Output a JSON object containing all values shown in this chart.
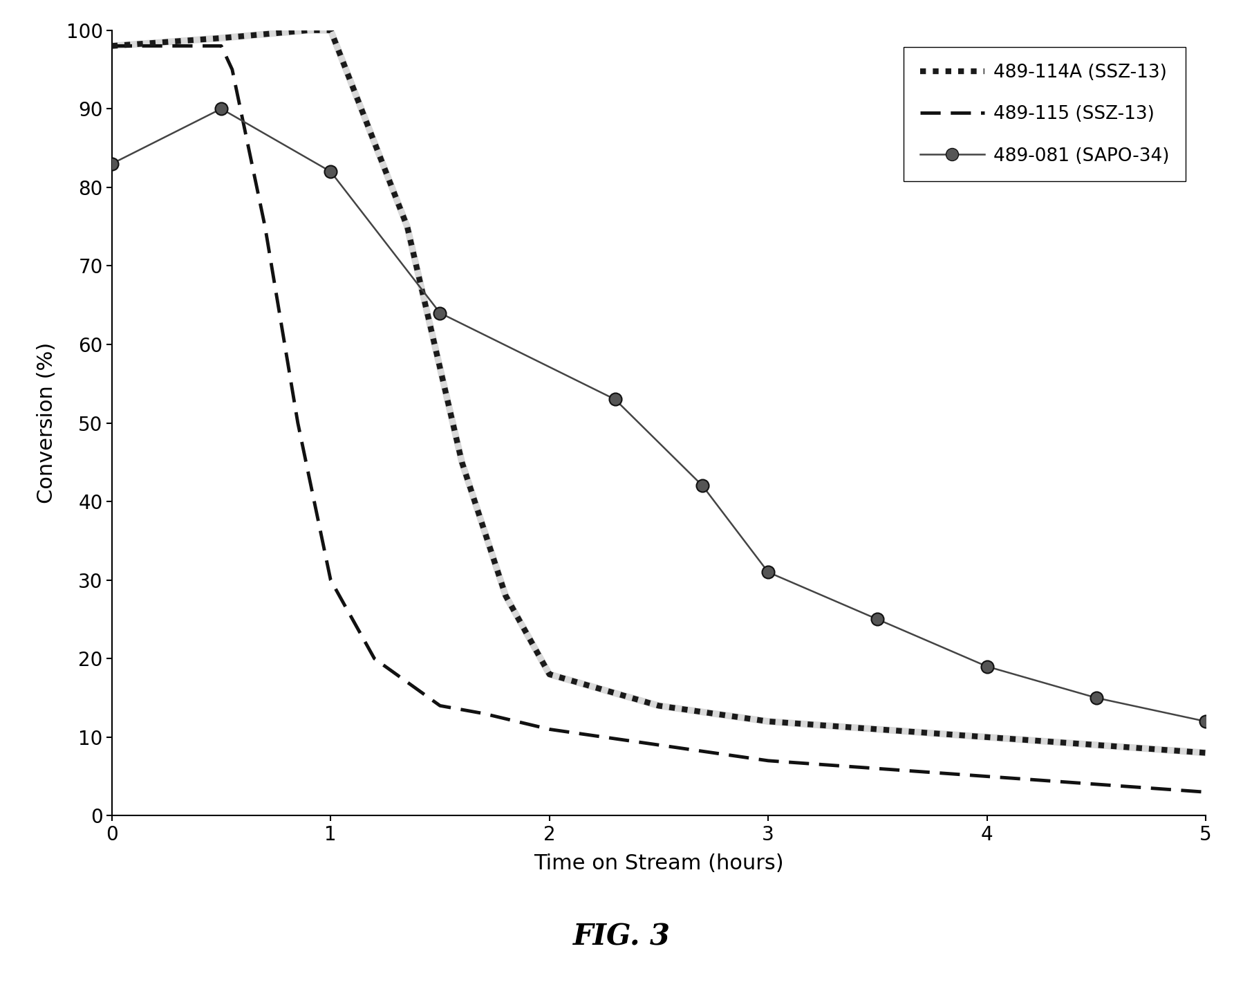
{
  "series": [
    {
      "label": "489-114A (SSZ-13)",
      "x": [
        0,
        0.5,
        0.9,
        1.0,
        1.35,
        1.6,
        1.8,
        2.0,
        2.5,
        3.0,
        3.5,
        4.0,
        4.5,
        5.0
      ],
      "y": [
        98,
        99,
        100,
        100,
        75,
        45,
        28,
        18,
        14,
        12,
        11,
        10,
        9,
        8
      ],
      "style": "dotted_thick",
      "color": "#1a1a1a",
      "linewidth": 6,
      "marker": null,
      "zorder": 3
    },
    {
      "label": "489-115 (SSZ-13)",
      "x": [
        0,
        0.5,
        0.55,
        0.7,
        0.85,
        1.0,
        1.2,
        1.5,
        1.7,
        2.0,
        2.5,
        3.0,
        3.5,
        4.0,
        4.5,
        5.0
      ],
      "y": [
        98,
        98,
        95,
        75,
        50,
        30,
        20,
        14,
        13,
        11,
        9,
        7,
        6,
        5,
        4,
        3
      ],
      "style": "dashed",
      "color": "#111111",
      "linewidth": 3.5,
      "marker": null,
      "zorder": 2
    },
    {
      "label": "489-081 (SAPO-34)",
      "x": [
        0,
        0.5,
        1.0,
        1.5,
        2.3,
        2.7,
        3.0,
        3.5,
        4.0,
        4.5,
        5.0
      ],
      "y": [
        83,
        90,
        82,
        64,
        53,
        42,
        31,
        25,
        19,
        15,
        12
      ],
      "style": "solid",
      "color": "#444444",
      "linewidth": 1.8,
      "marker": "o",
      "markersize": 13,
      "zorder": 4
    }
  ],
  "xlabel": "Time on Stream (hours)",
  "ylabel": "Conversion (%)",
  "xlim": [
    0,
    5
  ],
  "ylim": [
    0,
    100
  ],
  "xticks": [
    0,
    1,
    2,
    3,
    4,
    5
  ],
  "yticks": [
    0,
    10,
    20,
    30,
    40,
    50,
    60,
    70,
    80,
    90,
    100
  ],
  "xlabel_fontsize": 22,
  "ylabel_fontsize": 22,
  "tick_fontsize": 20,
  "legend_fontsize": 19,
  "figure_caption": "FIG. 3",
  "caption_fontsize": 30,
  "background_color": "#ffffff"
}
